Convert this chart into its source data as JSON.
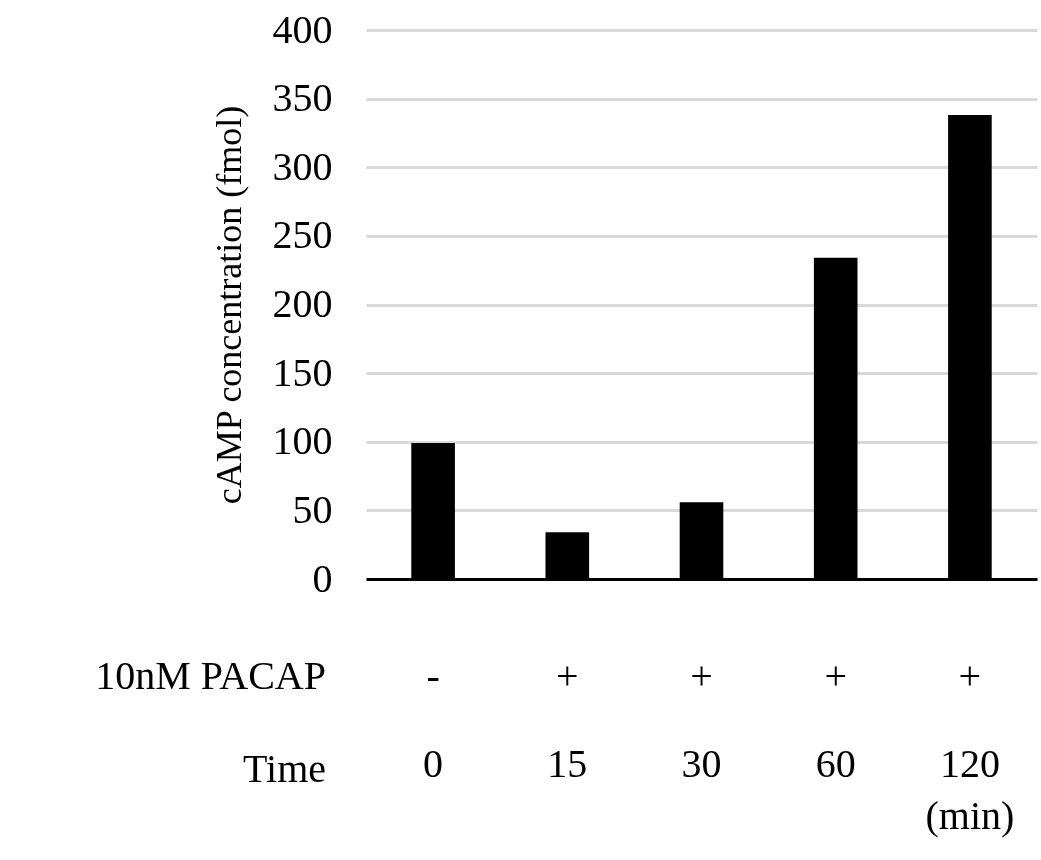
{
  "chart_data": {
    "type": "bar",
    "ylabel": "cAMP concentration (fmol)",
    "categories": [
      "0",
      "15",
      "30",
      "60",
      "120"
    ],
    "values": [
      99,
      34,
      56,
      234,
      338
    ],
    "color": "#000000",
    "ylim": [
      0,
      400
    ],
    "yticks": [
      0,
      50,
      100,
      150,
      200,
      250,
      300,
      350,
      400
    ],
    "grid": "y",
    "annotations": [
      "10nM PACAP",
      "Time",
      "(min)",
      "-",
      "+",
      "+",
      "+",
      "+"
    ]
  }
}
